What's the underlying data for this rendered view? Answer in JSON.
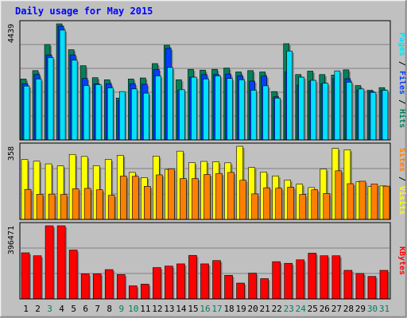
{
  "title": "Daily usage for May 2015",
  "colors": {
    "background": "#C0C0C0",
    "title": "#0000FF",
    "hits": "#00805C",
    "files": "#0040FF",
    "pages": "#00E0FF",
    "visits": "#FFFF00",
    "sites": "#FF8000",
    "kbytes": "#FF0000",
    "weekend_label": "#00805C",
    "weekday_label": "#000000",
    "grid": "#808080",
    "text": "#000000"
  },
  "chart_data": [
    {
      "type": "bar",
      "panel": "hits",
      "max_label": "4439",
      "right_label": {
        "pages": "Pages",
        "files": "Files",
        "hits": "Hits",
        "sep": " / "
      },
      "x": [
        "1",
        "2",
        "3",
        "4",
        "5",
        "6",
        "7",
        "8",
        "9",
        "10",
        "11",
        "12",
        "13",
        "14",
        "15",
        "16",
        "17",
        "18",
        "19",
        "20",
        "21",
        "22",
        "23",
        "24",
        "25",
        "26",
        "27",
        "28",
        "29",
        "30",
        "31"
      ],
      "ylim": [
        0,
        4439
      ],
      "series": [
        {
          "name": "Hits",
          "values": [
            2330,
            2650,
            3650,
            4439,
            3450,
            2840,
            2380,
            2300,
            1600,
            2330,
            2370,
            2920,
            3620,
            2300,
            2700,
            2670,
            2700,
            2750,
            2600,
            2650,
            2600,
            1850,
            3680,
            2500,
            2630,
            2500,
            2480,
            2680,
            2080,
            1900,
            2000
          ]
        },
        {
          "name": "Files",
          "values": [
            2150,
            2500,
            3250,
            4350,
            3250,
            2350,
            2150,
            2150,
            1500,
            2150,
            2130,
            2700,
            3500,
            1900,
            2400,
            2500,
            2500,
            2520,
            2450,
            2250,
            2440,
            1650,
            2600,
            2100,
            2250,
            2150,
            2350,
            2340,
            1900,
            1850,
            1900
          ]
        },
        {
          "name": "Pages",
          "values": [
            2060,
            2330,
            3150,
            4200,
            3050,
            2080,
            2120,
            1990,
            1850,
            1950,
            1790,
            2450,
            2770,
            1920,
            2400,
            2330,
            2450,
            2350,
            2300,
            1900,
            2070,
            1600,
            3400,
            2400,
            2280,
            2170,
            2640,
            2210,
            1950,
            1820,
            1900
          ]
        }
      ]
    },
    {
      "type": "bar",
      "panel": "visits",
      "max_label": "358",
      "right_label": {
        "sites": "Sites",
        "visits": "Visits",
        "sep": " / "
      },
      "x": [
        "1",
        "2",
        "3",
        "4",
        "5",
        "6",
        "7",
        "8",
        "9",
        "10",
        "11",
        "12",
        "13",
        "14",
        "15",
        "16",
        "17",
        "18",
        "19",
        "20",
        "21",
        "22",
        "23",
        "24",
        "25",
        "26",
        "27",
        "28",
        "29",
        "30",
        "31"
      ],
      "ylim": [
        0,
        358
      ],
      "series": [
        {
          "name": "Visits",
          "values": [
            293,
            285,
            272,
            262,
            318,
            308,
            263,
            294,
            314,
            230,
            205,
            310,
            245,
            334,
            278,
            284,
            282,
            277,
            358,
            254,
            232,
            213,
            193,
            173,
            156,
            247,
            348,
            341,
            184,
            161,
            164
          ]
        },
        {
          "name": "Sites",
          "values": [
            147,
            123,
            124,
            122,
            150,
            152,
            145,
            118,
            212,
            211,
            162,
            218,
            248,
            200,
            200,
            220,
            225,
            230,
            192,
            125,
            155,
            153,
            158,
            122,
            145,
            127,
            238,
            175,
            187,
            173,
            163
          ]
        }
      ]
    },
    {
      "type": "bar",
      "panel": "kbytes",
      "max_label": "396471",
      "right_label": {
        "kbytes": "KBytes"
      },
      "x": [
        "1",
        "2",
        "3",
        "4",
        "5",
        "6",
        "7",
        "8",
        "9",
        "10",
        "11",
        "12",
        "13",
        "14",
        "15",
        "16",
        "17",
        "18",
        "19",
        "20",
        "21",
        "22",
        "23",
        "24",
        "25",
        "26",
        "27",
        "28",
        "29",
        "30",
        "31"
      ],
      "ylim": [
        0,
        396471
      ],
      "series": [
        {
          "name": "KBytes",
          "values": [
            250000,
            234000,
            396471,
            396471,
            265000,
            136000,
            136000,
            159000,
            132000,
            71000,
            80000,
            170000,
            178000,
            190000,
            236000,
            190000,
            208000,
            128000,
            86000,
            140000,
            110000,
            202000,
            193000,
            212000,
            248000,
            234000,
            234000,
            155000,
            138000,
            122000,
            155000
          ]
        }
      ]
    }
  ],
  "weekend_days": [
    "3",
    "9",
    "10",
    "16",
    "17",
    "23",
    "24",
    "30",
    "31"
  ]
}
